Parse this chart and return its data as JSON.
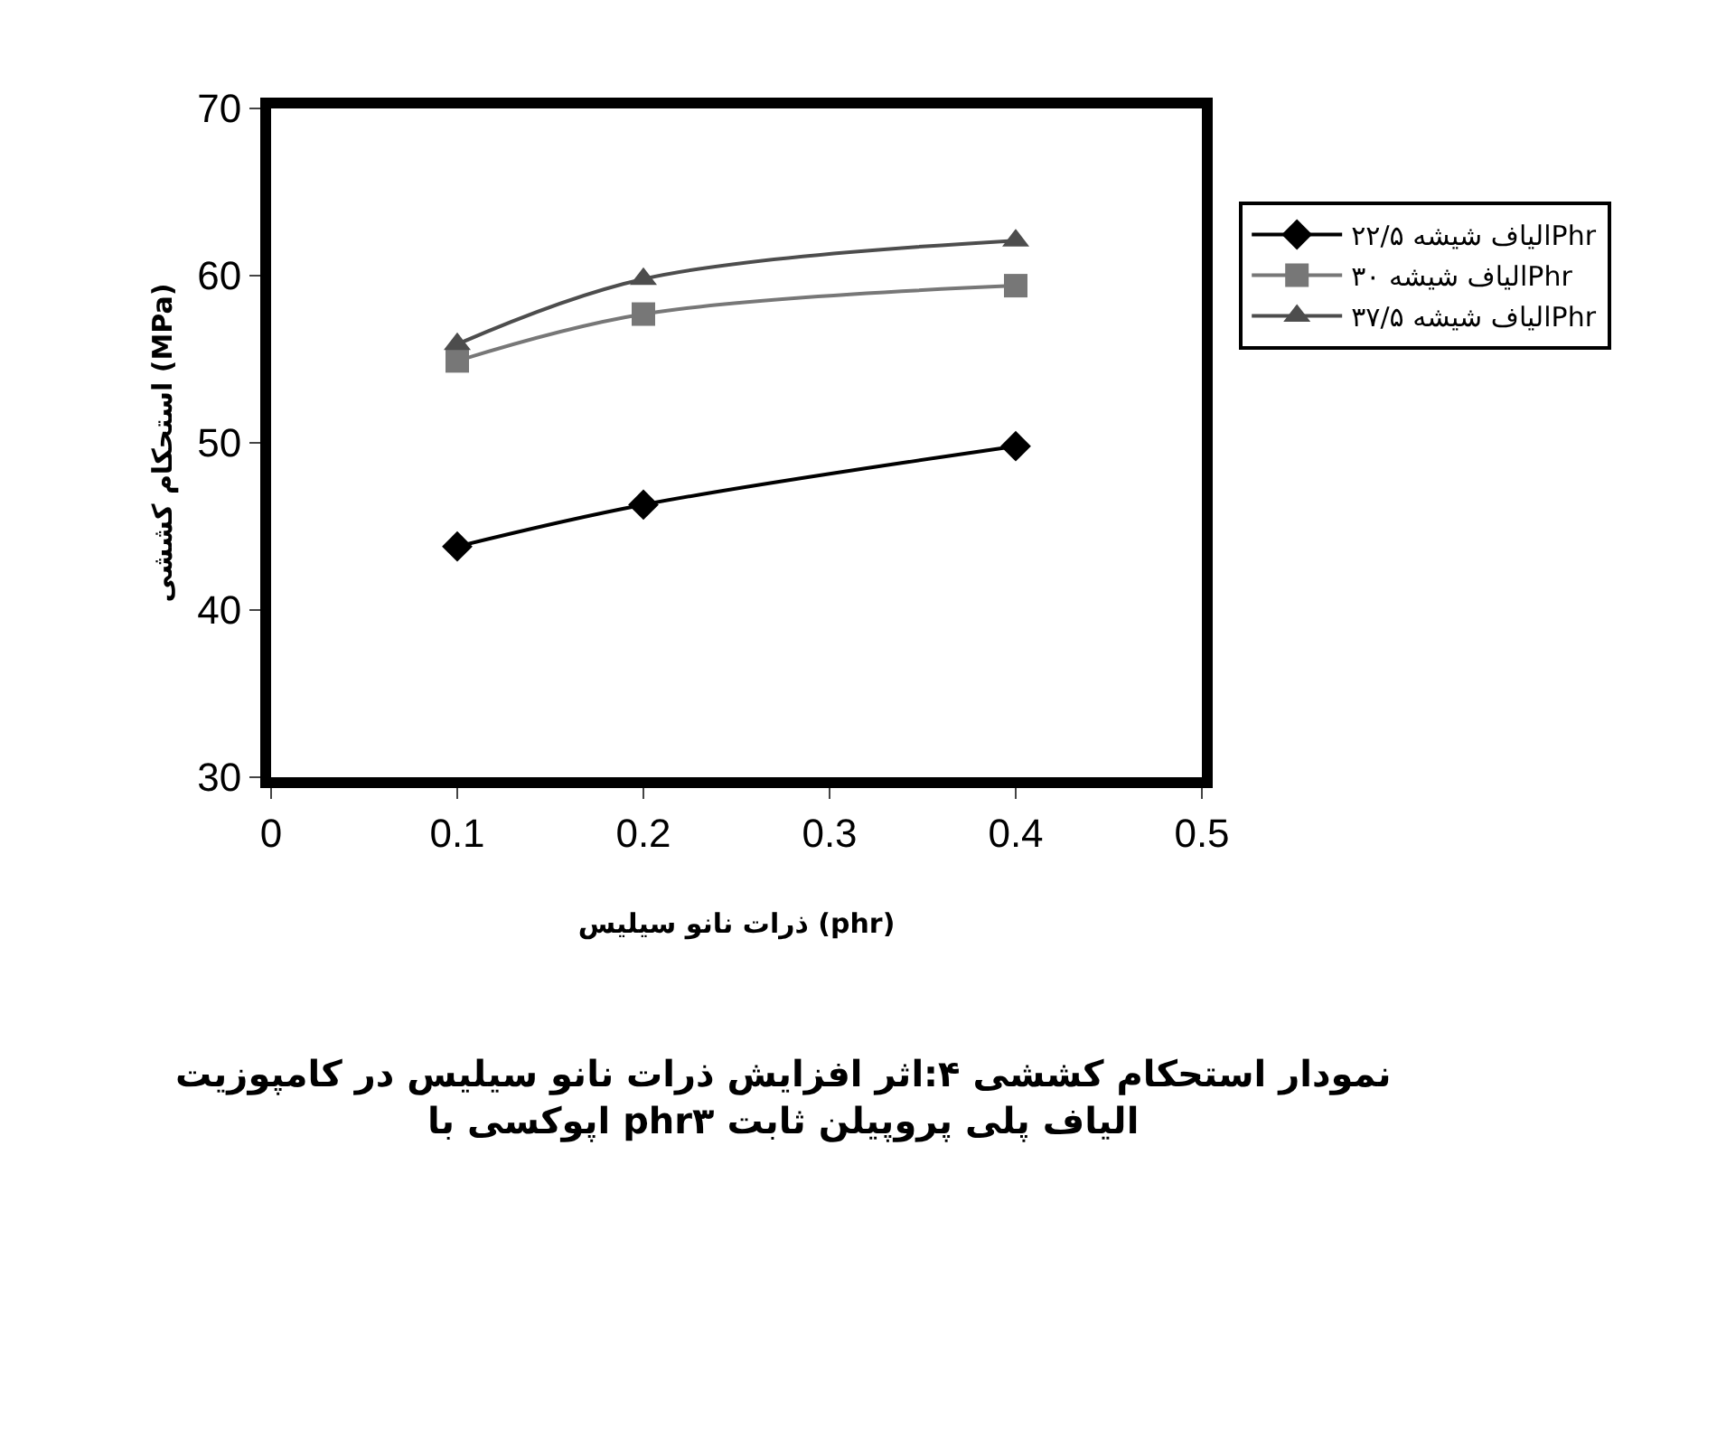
{
  "chart_data": {
    "type": "line",
    "xlabel": "ذرات نانو سیلیس (phr)",
    "ylabel": "استحکام کششی (MPa)",
    "x": [
      0.1,
      0.2,
      0.4
    ],
    "series": [
      {
        "name": "الیاف شیشه ۲۲/۵Phr",
        "color": "#000000",
        "marker": "diamond",
        "values": [
          43.8,
          46.3,
          49.8
        ]
      },
      {
        "name": "الیاف شیشه ۳۰Phr",
        "color": "#777777",
        "marker": "square",
        "values": [
          54.9,
          57.7,
          59.4
        ]
      },
      {
        "name": "الیاف شیشه ۳۷/۵Phr",
        "color": "#4d4d4d",
        "marker": "triangle",
        "values": [
          55.9,
          59.8,
          62.1
        ]
      }
    ],
    "xlim": [
      0,
      0.5
    ],
    "xticks": [
      0,
      0.1,
      0.2,
      0.3,
      0.4,
      0.5
    ],
    "ylim": [
      30,
      70
    ],
    "yticks": [
      30,
      40,
      50,
      60,
      70
    ],
    "legend": "right",
    "line_style": "solid",
    "annotations": [
      "نمودار استحکام کششی ۴:اثر افزایش ذرات نانو سیلیس در کامپوزیت\nاپوکسی با phr۳ الیاف پلی پروپیلن ثابت"
    ]
  }
}
